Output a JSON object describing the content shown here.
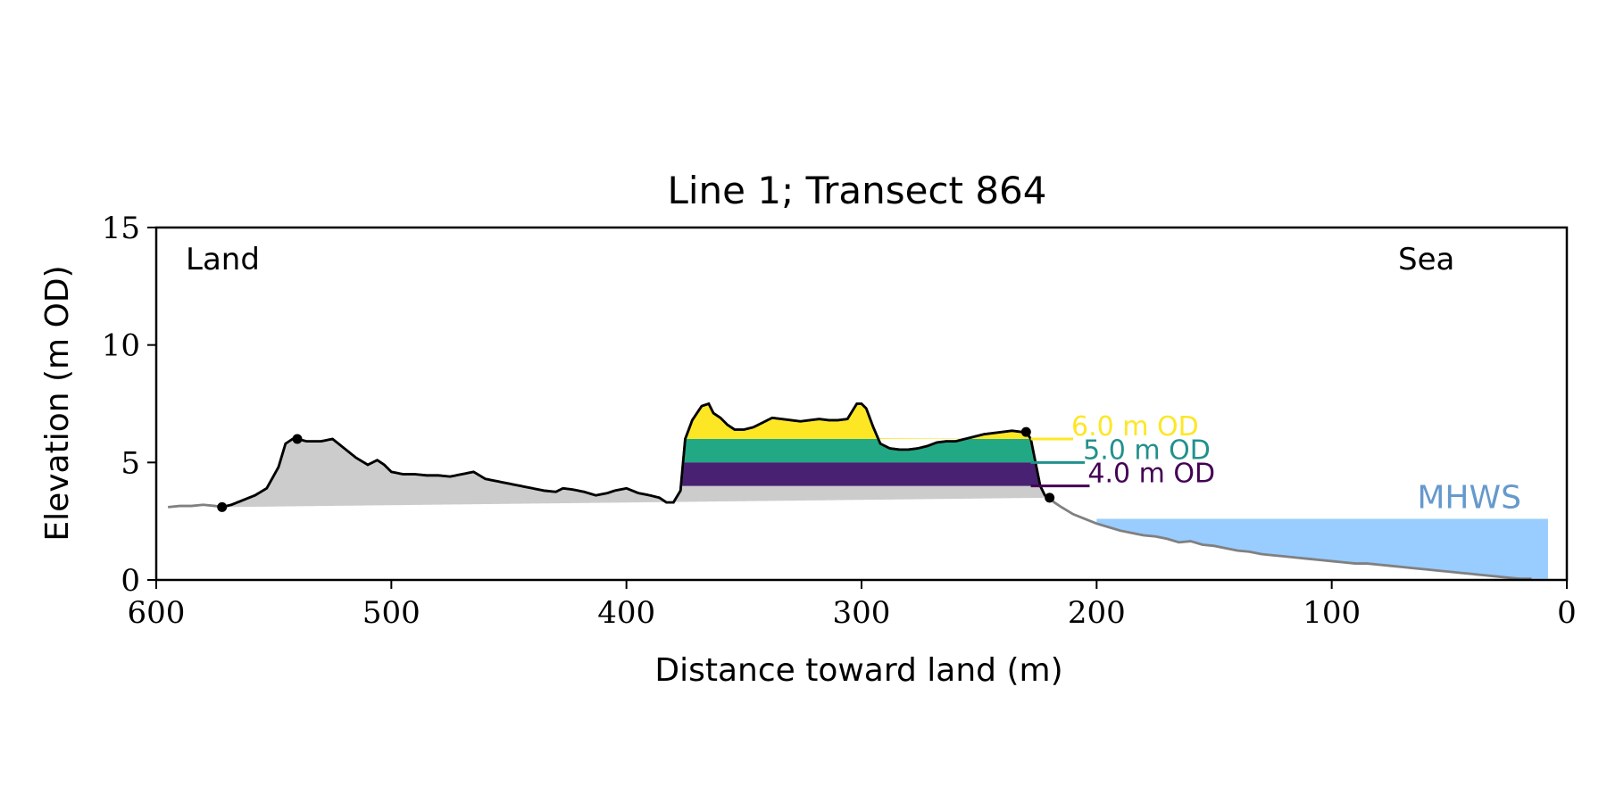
{
  "chart_data": {
    "type": "area",
    "title": "Line 1; Transect 864",
    "xlabel": "Distance toward land (m)",
    "ylabel": "Elevation (m OD)",
    "xlim": [
      600,
      0
    ],
    "ylim": [
      0,
      15
    ],
    "x_ticks": [
      600,
      500,
      400,
      300,
      200,
      100,
      0
    ],
    "y_ticks": [
      0,
      5,
      10,
      15
    ],
    "grid": false,
    "legend": "none",
    "corner_labels": {
      "left": "Land",
      "right": "Sea"
    },
    "colors": {
      "profile": "#808080",
      "dune_outline": "#000000",
      "dune_fill": "#cccccc",
      "level_6": "#fde725",
      "level_5": "#21918c",
      "level_4": "#440154",
      "fill_6": "#fde725",
      "fill_5": "#22a884",
      "fill_4": "#482173",
      "mhws_fill": "#99ccff",
      "mhws_text": "#6699cc"
    },
    "profile": {
      "x": [
        595,
        590,
        585,
        580,
        575,
        572,
        568,
        563,
        558,
        553,
        548,
        545,
        542,
        540,
        536,
        530,
        525,
        520,
        515,
        510,
        506,
        503,
        500,
        495,
        490,
        485,
        480,
        475,
        470,
        465,
        460,
        455,
        450,
        445,
        440,
        435,
        430,
        427,
        423,
        418,
        413,
        408,
        405,
        400,
        395,
        390,
        386,
        383,
        380,
        377,
        375,
        372,
        368,
        365,
        363,
        360,
        357,
        354,
        350,
        346,
        342,
        338,
        334,
        330,
        326,
        322,
        318,
        314,
        310,
        306,
        302,
        300,
        298,
        295,
        292,
        288,
        284,
        280,
        276,
        272,
        268,
        264,
        260,
        256,
        252,
        248,
        244,
        240,
        236,
        232,
        230,
        228,
        226,
        224,
        222,
        220,
        218,
        215,
        210,
        205,
        200,
        195,
        190,
        185,
        180,
        175,
        170,
        165,
        160,
        155,
        150,
        145,
        140,
        135,
        130,
        125,
        120,
        115,
        110,
        105,
        100,
        95,
        90,
        85,
        80,
        75,
        70,
        65,
        60,
        55,
        50,
        45,
        40,
        35,
        30,
        25,
        20,
        15
      ],
      "y": [
        3.1,
        3.15,
        3.15,
        3.2,
        3.15,
        3.1,
        3.2,
        3.4,
        3.6,
        3.9,
        4.8,
        5.8,
        6.0,
        6.0,
        5.9,
        5.9,
        6.0,
        5.6,
        5.2,
        4.9,
        5.1,
        4.9,
        4.6,
        4.5,
        4.5,
        4.45,
        4.45,
        4.4,
        4.5,
        4.6,
        4.3,
        4.2,
        4.1,
        4.0,
        3.9,
        3.8,
        3.75,
        3.9,
        3.85,
        3.75,
        3.6,
        3.7,
        3.8,
        3.9,
        3.7,
        3.6,
        3.5,
        3.3,
        3.3,
        3.8,
        6.0,
        6.8,
        7.4,
        7.5,
        7.1,
        6.9,
        6.6,
        6.4,
        6.4,
        6.5,
        6.7,
        6.9,
        6.85,
        6.8,
        6.75,
        6.8,
        6.85,
        6.8,
        6.8,
        6.85,
        7.5,
        7.5,
        7.3,
        6.5,
        5.8,
        5.6,
        5.55,
        5.55,
        5.6,
        5.7,
        5.85,
        5.9,
        5.9,
        6.0,
        6.1,
        6.2,
        6.25,
        6.3,
        6.35,
        6.3,
        6.3,
        6.0,
        5.0,
        4.0,
        3.6,
        3.5,
        3.3,
        3.1,
        2.8,
        2.6,
        2.4,
        2.25,
        2.1,
        2.0,
        1.9,
        1.85,
        1.75,
        1.6,
        1.65,
        1.5,
        1.45,
        1.35,
        1.25,
        1.2,
        1.1,
        1.05,
        1.0,
        0.95,
        0.9,
        0.85,
        0.8,
        0.75,
        0.7,
        0.7,
        0.65,
        0.6,
        0.55,
        0.5,
        0.45,
        0.4,
        0.35,
        0.3,
        0.25,
        0.2,
        0.15,
        0.1,
        0.05,
        0.05
      ],
      "dune_toe_left": {
        "x": 572,
        "y": 3.1
      },
      "dune_crest_left": {
        "x": 540,
        "y": 6.0
      },
      "dune_crest_right": {
        "x": 230,
        "y": 6.3
      },
      "dune_toe_right": {
        "x": 220,
        "y": 3.5
      }
    },
    "dune_base": {
      "x": [
        572,
        220
      ],
      "y": [
        3.1,
        3.5
      ]
    },
    "levels": [
      {
        "value": 6.0,
        "label": "6.0 m OD"
      },
      {
        "value": 5.0,
        "label": "5.0 m OD"
      },
      {
        "value": 4.0,
        "label": "4.0 m OD"
      }
    ],
    "mhws": {
      "label": "MHWS",
      "value": 2.6,
      "x_from": 200,
      "x_to": 8
    }
  }
}
